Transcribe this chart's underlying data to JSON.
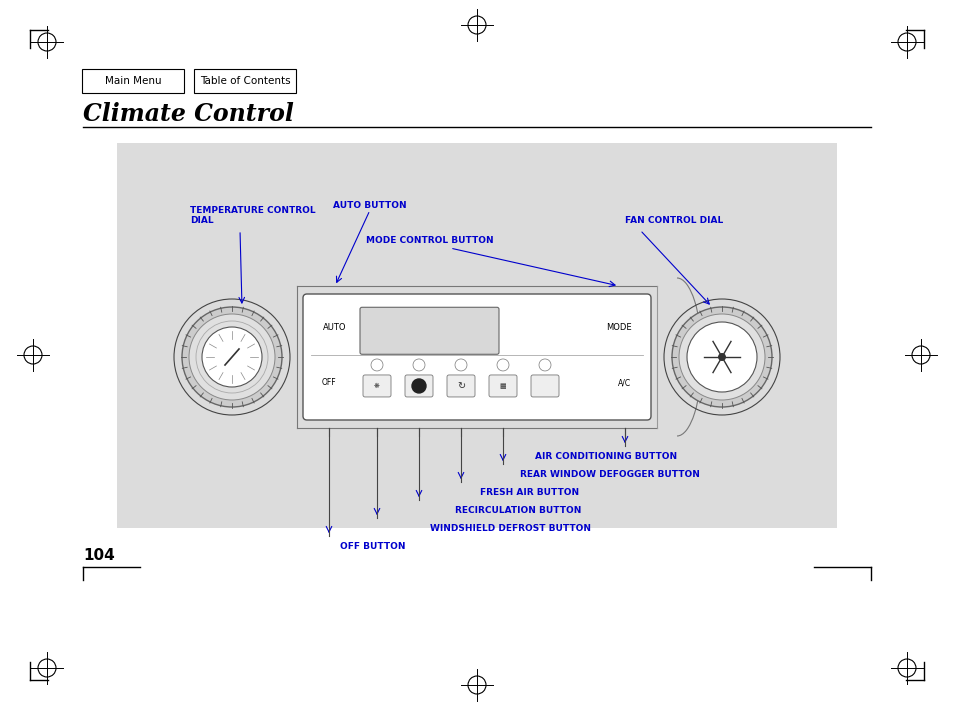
{
  "page_title": "Climate Control",
  "page_number": "104",
  "nav_buttons": [
    "Main Menu",
    "Table of Contents"
  ],
  "label_color": "#0000CC",
  "bg_color": "#FFFFFF",
  "diagram_bg": "#DCDCDC",
  "label_fontsize": 6.5,
  "title_fontsize": 17,
  "figsize": [
    9.54,
    7.1
  ],
  "dpi": 100
}
